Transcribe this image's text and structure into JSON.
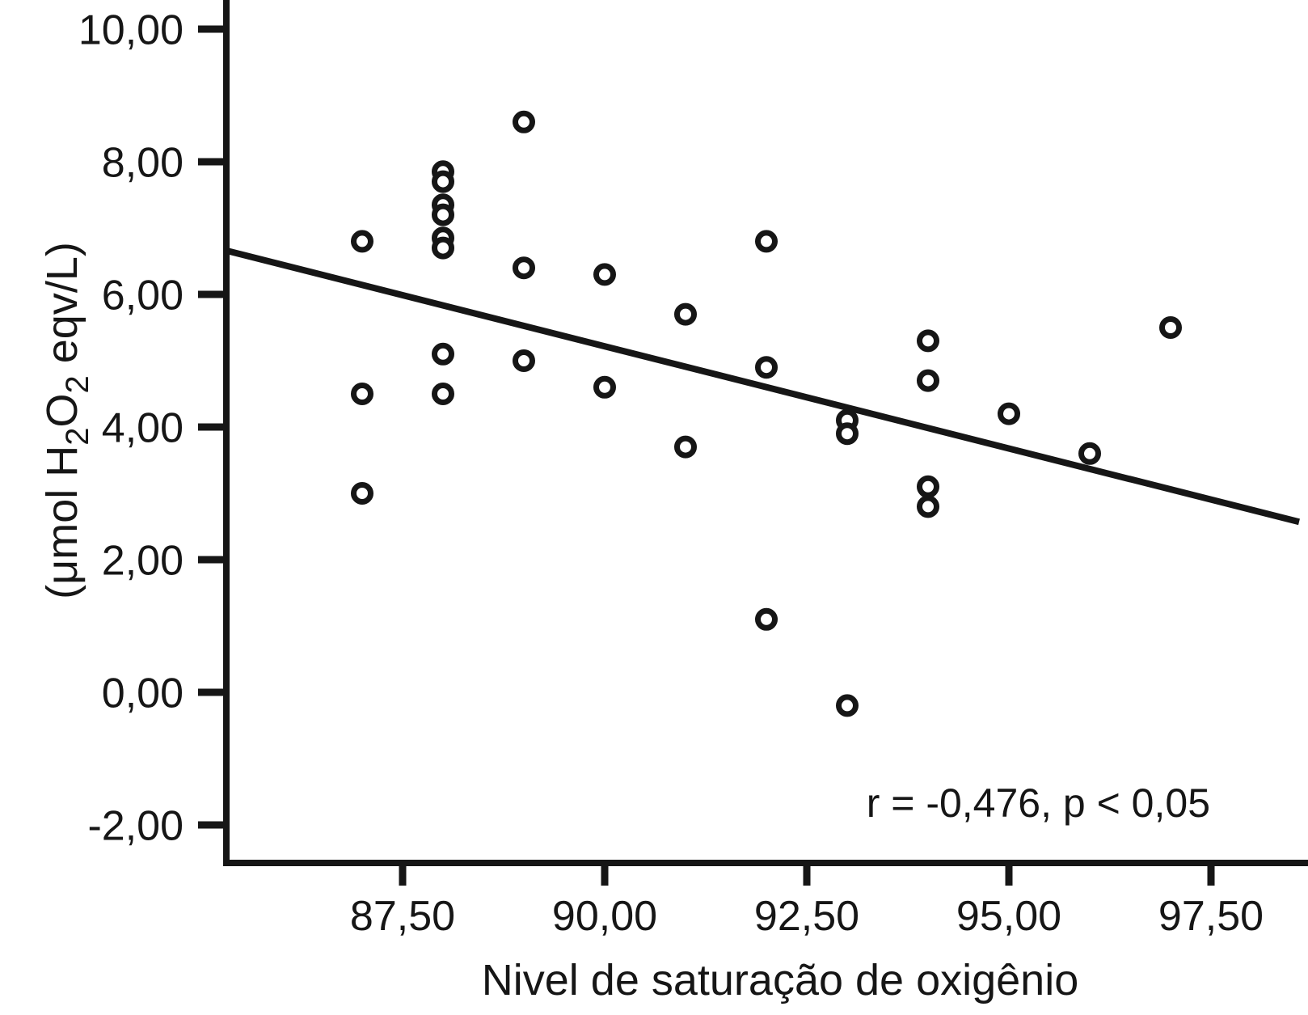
{
  "chart_data": {
    "type": "scatter",
    "xlabel": "Nivel de saturação de oxigênio",
    "ylabel": "(μmol H2O2 eqv/L)",
    "ylabel_segments": [
      {
        "text": "(μmol H"
      },
      {
        "text": "2",
        "sub": true
      },
      {
        "text": "O"
      },
      {
        "text": "2",
        "sub": true
      },
      {
        "text": " eqv/L)"
      }
    ],
    "annotation": "r = -0,476, p < 0,05",
    "color": "#161616",
    "background": "#ffffff",
    "xlim": [
      85.3,
      98.7
    ],
    "ylim": [
      -2.57,
      10.44
    ],
    "grid": false,
    "legend": null,
    "x_ticks": [
      {
        "value": 87.5,
        "label": "87,50"
      },
      {
        "value": 90.0,
        "label": "90,00"
      },
      {
        "value": 92.5,
        "label": "92,50"
      },
      {
        "value": 95.0,
        "label": "95,00"
      },
      {
        "value": 97.5,
        "label": "97,50"
      }
    ],
    "y_ticks": [
      {
        "value": 10,
        "label": "10,00"
      },
      {
        "value": 8,
        "label": "8,00"
      },
      {
        "value": 6,
        "label": "6,00"
      },
      {
        "value": 4,
        "label": "4,00"
      },
      {
        "value": 2,
        "label": "2,00"
      },
      {
        "value": 0,
        "label": "0,00"
      },
      {
        "value": -2,
        "label": "-2,00"
      }
    ],
    "points": [
      [
        87.0,
        6.8
      ],
      [
        87.0,
        4.5
      ],
      [
        87.0,
        3.0
      ],
      [
        88.0,
        7.85
      ],
      [
        88.0,
        7.7
      ],
      [
        88.0,
        7.35
      ],
      [
        88.0,
        7.2
      ],
      [
        88.0,
        6.85
      ],
      [
        88.0,
        6.7
      ],
      [
        88.0,
        5.1
      ],
      [
        88.0,
        4.5
      ],
      [
        89.0,
        8.6
      ],
      [
        89.0,
        6.4
      ],
      [
        89.0,
        5.0
      ],
      [
        90.0,
        6.3
      ],
      [
        90.0,
        4.6
      ],
      [
        91.0,
        5.7
      ],
      [
        91.0,
        3.7
      ],
      [
        92.0,
        6.8
      ],
      [
        92.0,
        4.9
      ],
      [
        92.0,
        1.1
      ],
      [
        93.0,
        4.1
      ],
      [
        93.0,
        3.9
      ],
      [
        93.0,
        -0.2
      ],
      [
        94.0,
        5.3
      ],
      [
        94.0,
        4.7
      ],
      [
        94.0,
        3.1
      ],
      [
        94.0,
        2.8
      ],
      [
        95.0,
        4.2
      ],
      [
        96.0,
        3.6
      ],
      [
        97.0,
        5.5
      ]
    ],
    "trend_line": {
      "x1": 85.32,
      "y1": 6.66,
      "x2": 98.59,
      "y2": 2.57
    },
    "marker": {
      "shape": "open-circle",
      "radius": 10.5,
      "stroke_width": 7,
      "fill": "#ffffff"
    }
  }
}
